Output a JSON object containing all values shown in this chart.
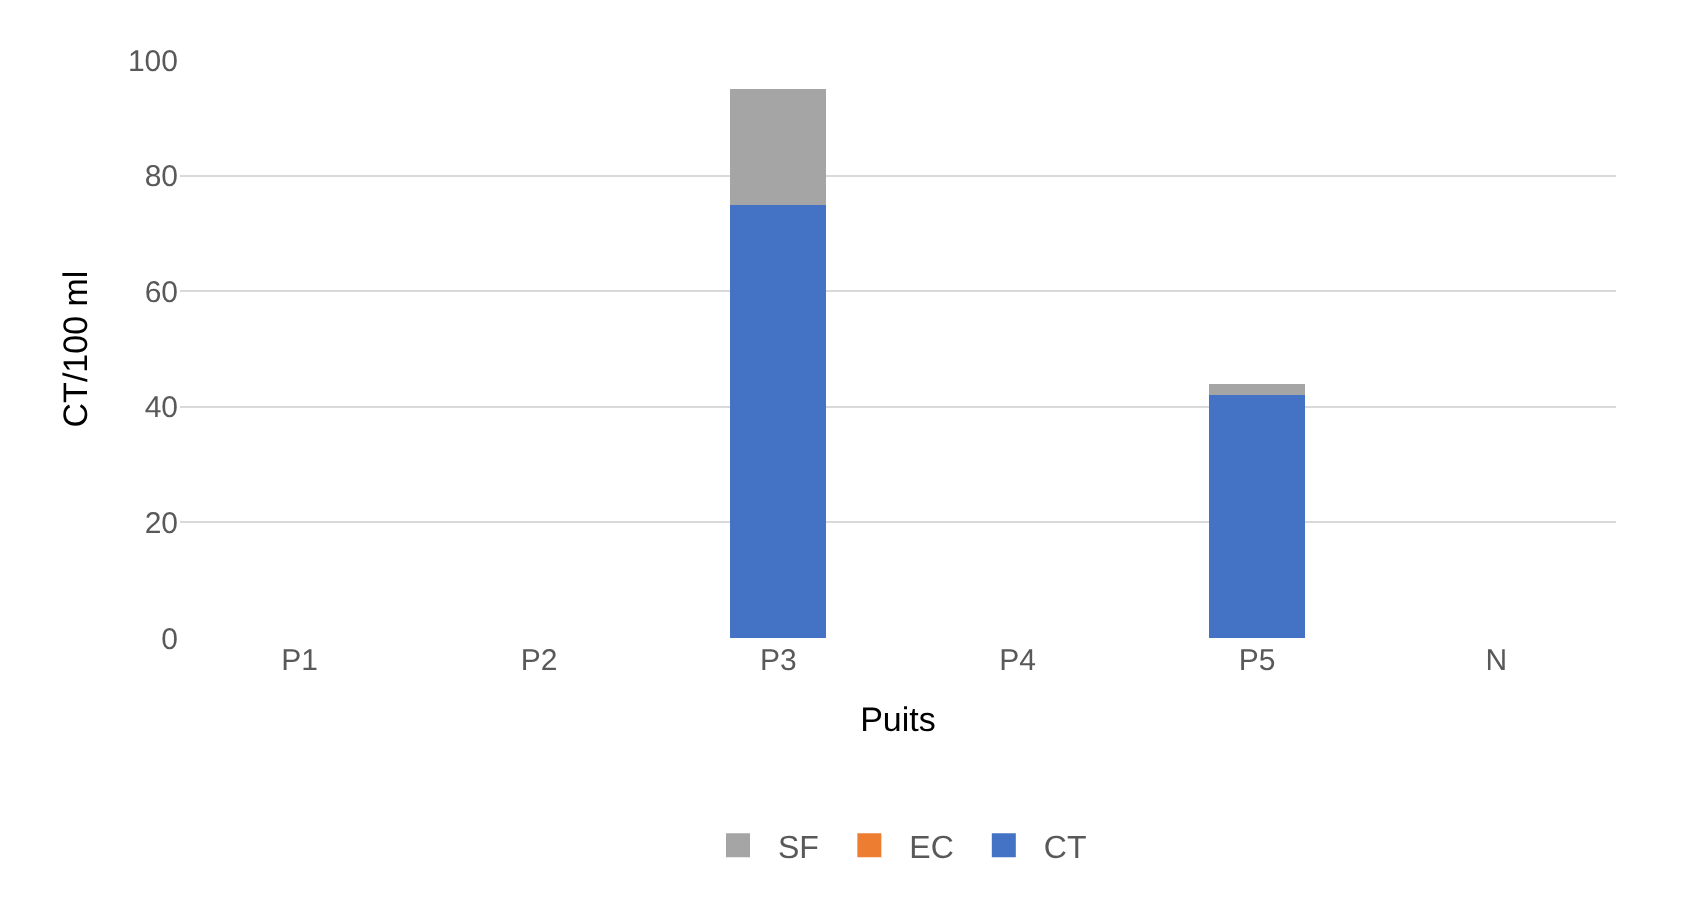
{
  "chart_data": {
    "type": "bar",
    "stacked": true,
    "xlabel": "Puits",
    "ylabel": "CT/100 ml",
    "categories": [
      "P1",
      "P2",
      "P3",
      "P4",
      "P5",
      "N"
    ],
    "series": [
      {
        "name": "CT",
        "color": "#4472c4",
        "colors": [
          "#4472c4",
          "#4472c4",
          "#4472c4",
          "#4472c4",
          "#4472c4",
          "#00b050"
        ],
        "values": [
          0,
          0,
          75,
          0,
          42,
          0
        ]
      },
      {
        "name": "EC",
        "color": "#ed7d31",
        "values": [
          0,
          0,
          0,
          0,
          0,
          0
        ]
      },
      {
        "name": "SF",
        "color": "#a5a5a5",
        "values": [
          0,
          0,
          20,
          0,
          2,
          0
        ]
      }
    ],
    "ylim": [
      0,
      100
    ],
    "yticks": [
      0,
      20,
      40,
      60,
      80,
      100
    ],
    "grid": "y",
    "legend": "bottom"
  }
}
